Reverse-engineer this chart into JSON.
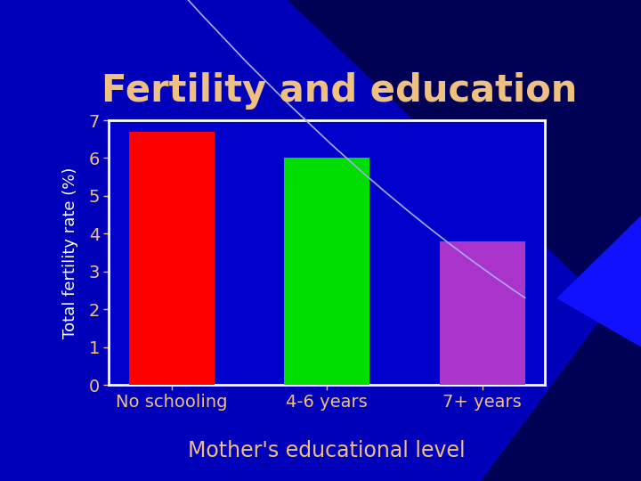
{
  "title": "Fertility and education",
  "title_color": "#f0c080",
  "title_fontsize": 30,
  "title_fontweight": "bold",
  "categories": [
    "No schooling",
    "4-6 years",
    "7+ years"
  ],
  "values": [
    6.7,
    6.0,
    3.8
  ],
  "bar_colors": [
    "#ff0000",
    "#00dd00",
    "#aa33cc"
  ],
  "ylabel": "Total fertility rate (%)",
  "ylabel_color": "#ffffff",
  "ylabel_fontsize": 13,
  "xlabel": "Mother's educational level",
  "xlabel_color": "#f0c080",
  "xlabel_fontsize": 17,
  "tick_label_color": "#f0c080",
  "tick_label_fontsize": 14,
  "ylim": [
    0,
    7
  ],
  "yticks": [
    0,
    1,
    2,
    3,
    4,
    5,
    6,
    7
  ],
  "background_color": "#0000bb",
  "plot_bg_color": "#0000cc",
  "spine_color": "#ffffff",
  "tick_color": "#f0c080",
  "arc_color": "#aaaaee",
  "dark_bg_color": "#000055"
}
